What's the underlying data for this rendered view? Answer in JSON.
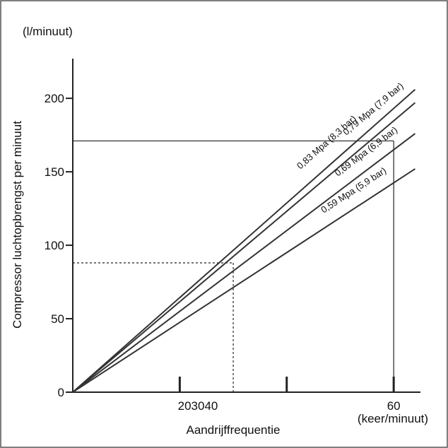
{
  "chart_data": {
    "type": "line",
    "y_unit": "(l/minuut)",
    "y_label": "Compressor luchtopbrengst per minuut",
    "x_label": "Aandrijffrequentie",
    "x_unit": "(keer/minuut)",
    "x_tick_text": "203040",
    "x": [
      0,
      64
    ],
    "series": [
      {
        "name": "0,83 Mpa (8,3 bar)",
        "color": "#333333",
        "values": [
          0,
          206
        ]
      },
      {
        "name": "0,79 Mpa (7,9 bar)",
        "color": "#333333",
        "values": [
          0,
          197
        ]
      },
      {
        "name": "0,69 Mpa (6,9 bar)",
        "color": "#333333",
        "values": [
          0,
          176
        ]
      },
      {
        "name": "0,59 Mpa (5,9 bar)",
        "color": "#333333",
        "values": [
          0,
          152
        ]
      }
    ],
    "reference_points": [
      {
        "x": 60,
        "y": 171,
        "style": "solid"
      },
      {
        "x": 30,
        "y": 88,
        "style": "dashed"
      }
    ],
    "xlim": [
      0,
      65
    ],
    "xticks": [
      20,
      40,
      60
    ],
    "ylim": [
      0,
      227
    ],
    "yticks": [
      0,
      50,
      100,
      150,
      200
    ]
  }
}
